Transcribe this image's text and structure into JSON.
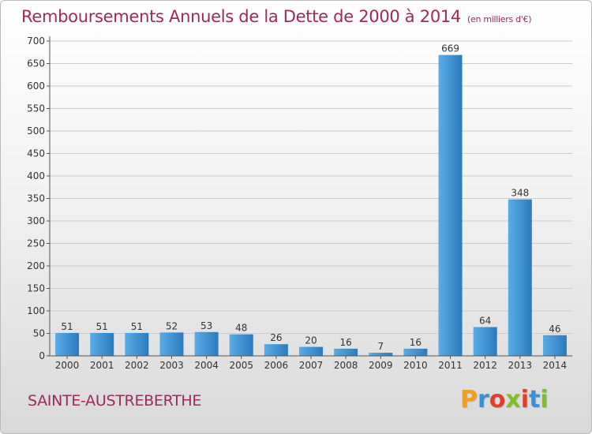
{
  "header": {
    "title": "Remboursements Annuels de la Dette de 2000 à 2014",
    "unit_note": "(en milliers d'€)"
  },
  "footer": {
    "commune": "SAINTE-AUSTREBERTHE",
    "logo_letters": [
      "P",
      "r",
      "o",
      "x",
      "i",
      "t",
      "i"
    ],
    "logo_colors": [
      "#f0a020",
      "#3a8fd8",
      "#e0402a",
      "#7cbf2a",
      "#e0402a",
      "#3a8fd8",
      "#7cbf2a"
    ]
  },
  "colors": {
    "bar_light": "#5aace6",
    "bar_dark": "#2a7bbf",
    "title": "#a0285a",
    "axis": "#555555",
    "grid": "#cccccc"
  },
  "chart_data": {
    "type": "bar",
    "title": "Remboursements Annuels de la Dette de 2000 à 2014",
    "subtitle": "(en milliers d'€)",
    "categories": [
      "2000",
      "2001",
      "2002",
      "2003",
      "2004",
      "2005",
      "2006",
      "2007",
      "2008",
      "2009",
      "2010",
      "2011",
      "2012",
      "2013",
      "2014"
    ],
    "values": [
      51,
      51,
      51,
      52,
      53,
      48,
      26,
      20,
      16,
      7,
      16,
      669,
      64,
      348,
      46
    ],
    "ylim": [
      0,
      700
    ],
    "yticks": [
      0,
      50,
      100,
      150,
      200,
      250,
      300,
      350,
      400,
      450,
      500,
      550,
      600,
      650,
      700
    ],
    "grid": true,
    "data_labels": true
  }
}
